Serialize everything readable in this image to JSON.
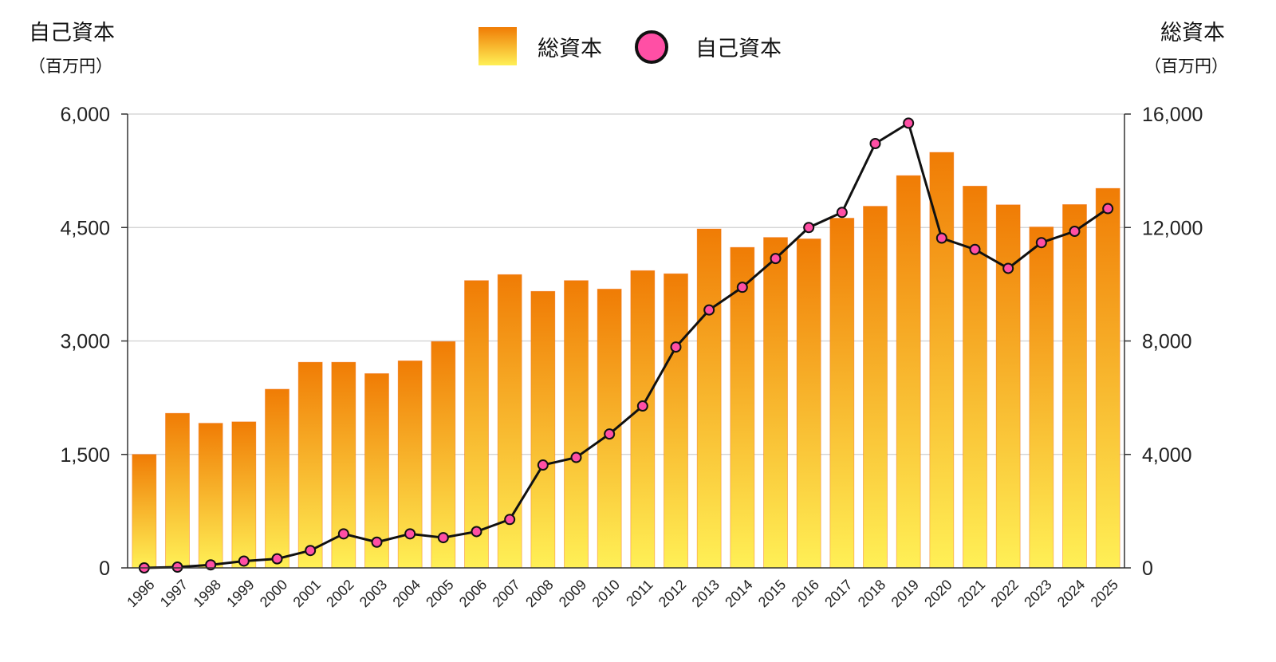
{
  "chart_data": {
    "type": "bar",
    "categories": [
      "1996",
      "1997",
      "1998",
      "1999",
      "2000",
      "2001",
      "2002",
      "2003",
      "2004",
      "2005",
      "2006",
      "2007",
      "2008",
      "2009",
      "2010",
      "2011",
      "2012",
      "2013",
      "2014",
      "2015",
      "2016",
      "2017",
      "2018",
      "2019",
      "2020",
      "2021",
      "2022",
      "2023",
      "2024",
      "2025"
    ],
    "series": [
      {
        "name": "総資本",
        "type": "bar",
        "axis": "right",
        "values": [
          4000,
          5450,
          5100,
          5150,
          6300,
          7250,
          7250,
          6850,
          7300,
          7980,
          10130,
          10340,
          9750,
          10130,
          9830,
          10480,
          10370,
          11950,
          11300,
          11650,
          11600,
          12330,
          12750,
          13830,
          14650,
          13460,
          12800,
          12020,
          12810,
          13380
        ]
      },
      {
        "name": "自己資本",
        "type": "line",
        "axis": "left",
        "values": [
          0,
          10,
          40,
          90,
          120,
          230,
          450,
          340,
          450,
          400,
          480,
          640,
          1360,
          1460,
          1770,
          2140,
          2920,
          3410,
          3710,
          4090,
          4500,
          4700,
          5610,
          5880,
          4360,
          4210,
          3960,
          4300,
          4450,
          4750
        ]
      }
    ],
    "left_axis": {
      "title": "自己資本",
      "unit": "（百万円）",
      "ylim": [
        0,
        6000
      ],
      "ticks": [
        "0",
        "1,500",
        "3,000",
        "4,500",
        "6,000"
      ]
    },
    "right_axis": {
      "title": "総資本",
      "unit": "（百万円）",
      "ylim": [
        0,
        16000
      ],
      "ticks": [
        "0",
        "4,000",
        "8,000",
        "12,000",
        "16,000"
      ]
    },
    "legend": {
      "placement": "top-center",
      "items": [
        "総資本",
        "自己資本"
      ]
    },
    "grid": true,
    "colors": {
      "bar_top": "#f07c05",
      "bar_bottom": "#fff056",
      "bar_edge": "#f36a14",
      "line": "#111111",
      "marker": "#ff4fa5",
      "grid": "#cfcfcf"
    }
  }
}
